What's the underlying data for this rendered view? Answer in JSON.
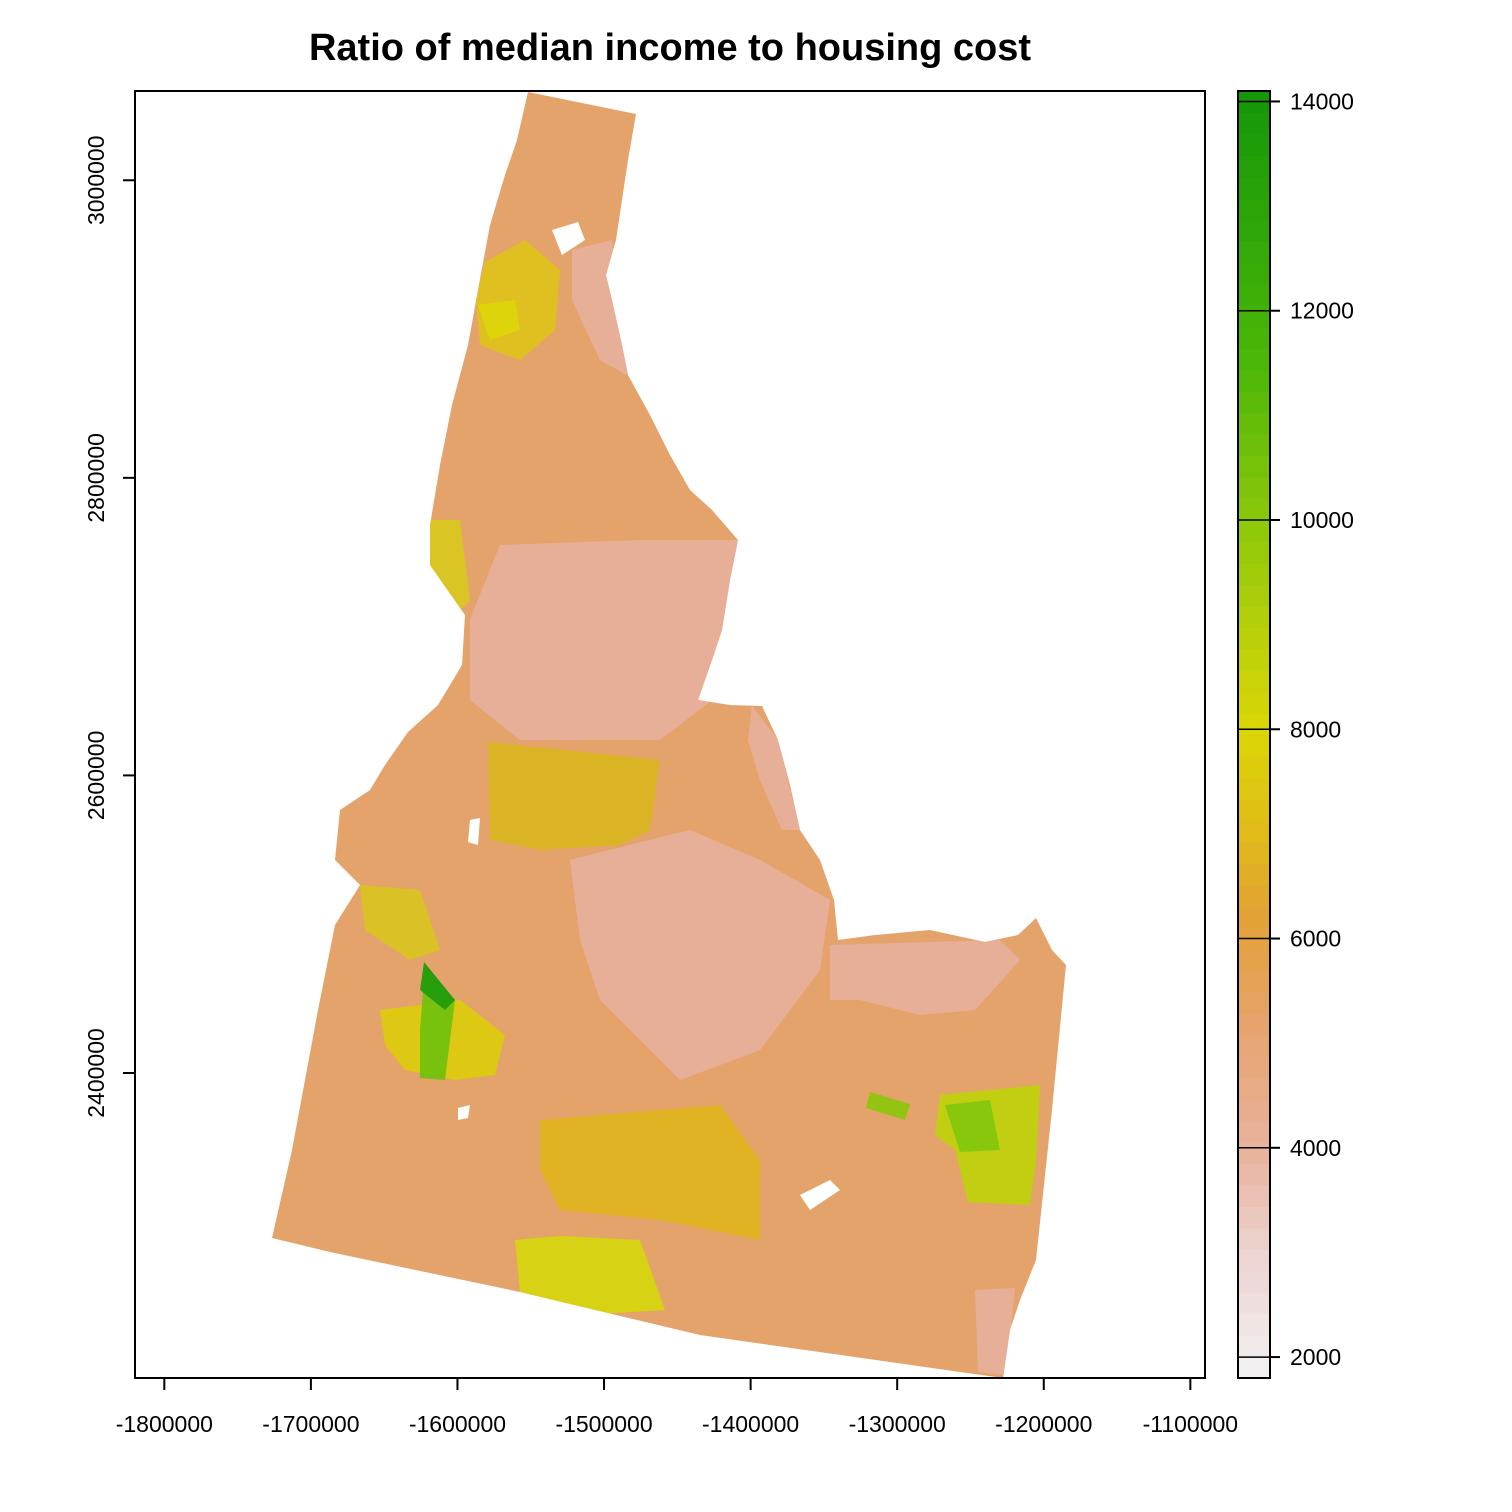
{
  "title": "Ratio of median income to housing cost",
  "map": {
    "region": "Idaho",
    "projection_units": "meters",
    "xlim": [
      -1820000,
      -1090000
    ],
    "ylim": [
      2195000,
      3060000
    ],
    "x_ticks": [
      -1800000,
      -1700000,
      -1600000,
      -1500000,
      -1400000,
      -1300000,
      -1200000,
      -1100000
    ],
    "x_tick_labels": [
      "-1800000",
      "-1700000",
      "-1600000",
      "-1500000",
      "-1400000",
      "-1300000",
      "-1200000",
      "-1100000"
    ],
    "y_ticks": [
      2400000,
      2600000,
      2800000,
      3000000
    ],
    "y_tick_labels": [
      "2400000",
      "2600000",
      "2800000",
      "3000000"
    ],
    "colors": {
      "dominant": "#e5a36c",
      "low": "#e8b09c",
      "mid": "#dcb820",
      "high": "#8cc70a",
      "peak": "#1f9a0a",
      "background": "#ffffff"
    }
  },
  "legend": {
    "placement": "right",
    "range": [
      1800,
      14100
    ],
    "ticks": [
      2000,
      4000,
      6000,
      8000,
      10000,
      12000,
      14000
    ],
    "tick_labels": [
      "2000",
      "4000",
      "6000",
      "8000",
      "10000",
      "12000",
      "14000"
    ],
    "stops": [
      {
        "value": 1800,
        "color": "#f2f2f2"
      },
      {
        "value": 3000,
        "color": "#ecd3d0"
      },
      {
        "value": 4000,
        "color": "#e8b29c"
      },
      {
        "value": 5200,
        "color": "#e6a36c"
      },
      {
        "value": 6200,
        "color": "#e3a235"
      },
      {
        "value": 7200,
        "color": "#dfc014"
      },
      {
        "value": 8000,
        "color": "#dbd605"
      },
      {
        "value": 9000,
        "color": "#b5d00a"
      },
      {
        "value": 10000,
        "color": "#8cc70a"
      },
      {
        "value": 11500,
        "color": "#4cb708"
      },
      {
        "value": 14100,
        "color": "#139608"
      }
    ]
  }
}
